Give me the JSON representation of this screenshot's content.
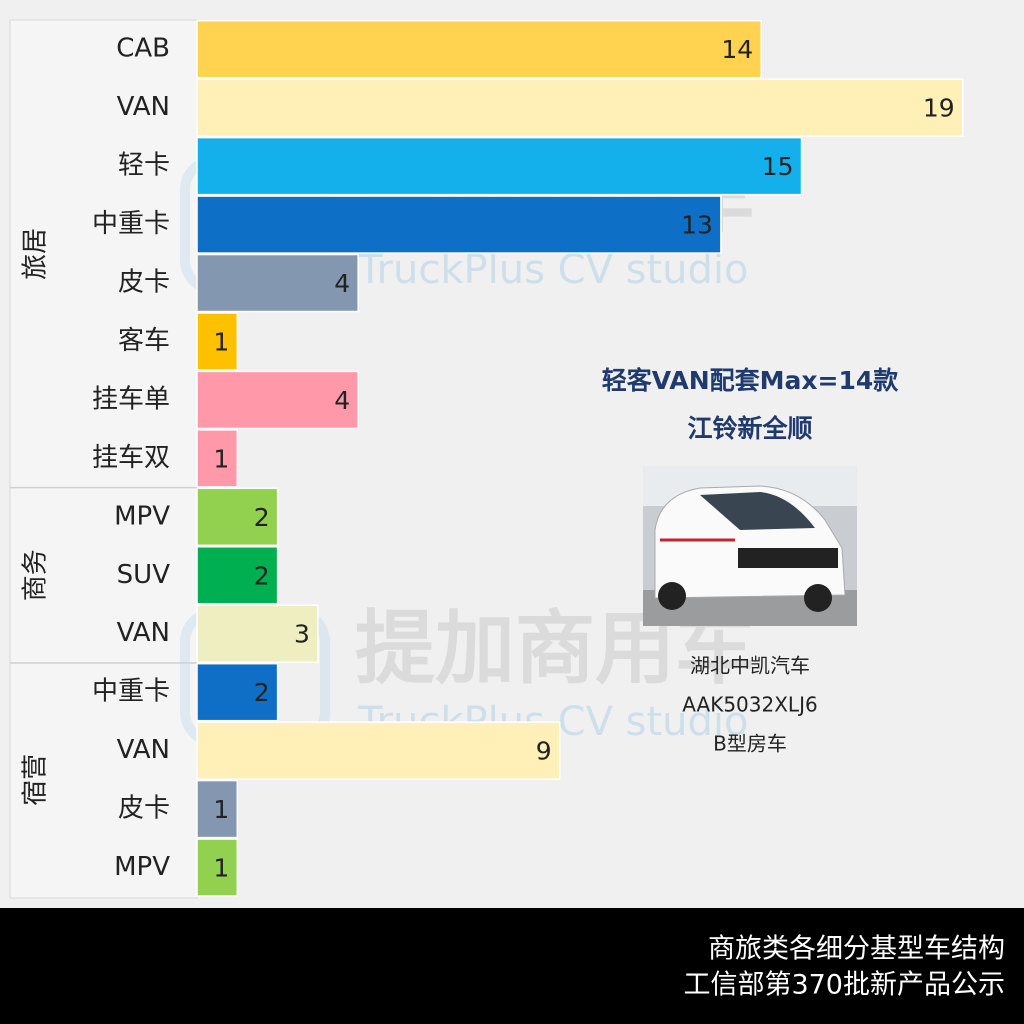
{
  "chart_data": {
    "type": "bar",
    "orientation": "horizontal",
    "groups": [
      {
        "label": "旅居",
        "categories": [
          "CAB",
          "VAN",
          "轻卡",
          "中重卡",
          "皮卡",
          "客车",
          "挂车单",
          "挂车双"
        ],
        "values": [
          14,
          19,
          15,
          13,
          4,
          1,
          4,
          1
        ],
        "colors": [
          "#ffd34f",
          "#fff0b8",
          "#14b0ec",
          "#0d6fc6",
          "#8497b0",
          "#ffc000",
          "#ff99aa",
          "#ff99aa"
        ]
      },
      {
        "label": "商务",
        "categories": [
          "MPV",
          "SUV",
          "VAN"
        ],
        "values": [
          2,
          2,
          3
        ],
        "colors": [
          "#92d050",
          "#00b050",
          "#efeec0"
        ]
      },
      {
        "label": "宿营",
        "categories": [
          "中重卡",
          "VAN",
          "皮卡",
          "MPV"
        ],
        "values": [
          2,
          9,
          1,
          1
        ],
        "colors": [
          "#0f6fc6",
          "#fff0b8",
          "#8497b0",
          "#92d050"
        ]
      }
    ],
    "annotation": {
      "title": "轻客VAN配套Max=14款",
      "subtitle": "江铃新全顺",
      "lines": [
        "湖北中凯汽车",
        "AAK5032XLJ6",
        "B型房车"
      ]
    },
    "watermark": {
      "title": "提加商用车",
      "subtitle": "TruckPlus CV studio"
    },
    "footer": [
      "商旅类各细分基型车结构",
      "工信部第370批新产品公示"
    ]
  }
}
